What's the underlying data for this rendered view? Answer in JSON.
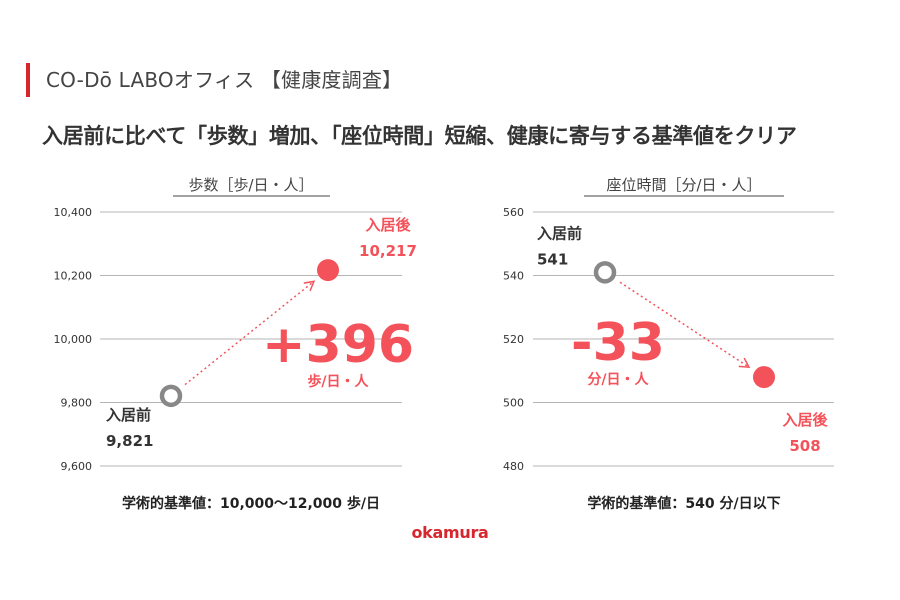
{
  "header": {
    "title": "CO-Dō LABOオフィス 【健康度調査】"
  },
  "headline": "入居前に比べて「歩数」増加、「座位時間」短縮、健康に寄与する基準値をクリア",
  "footer": {
    "logo": "okamura"
  },
  "colors": {
    "accent": "#d8262e",
    "after": "#f4525a",
    "before": "#888888",
    "grid": "#b5b5b5"
  },
  "chart_data": [
    {
      "type": "line",
      "title": "歩数［歩/日・人］",
      "ylim": [
        9600,
        10400
      ],
      "yticks": [
        "9,600",
        "9,800",
        "10,000",
        "10,200",
        "10,400"
      ],
      "ytick_values": [
        9600,
        9800,
        10000,
        10200,
        10400
      ],
      "grid": true,
      "before": {
        "label": "入居前",
        "value": 9821,
        "value_text": "9,821"
      },
      "after": {
        "label": "入居後",
        "value": 10217,
        "value_text": "10,217"
      },
      "delta": "+396",
      "delta_unit": "歩/日・人",
      "note": "学術的基準値：10,000〜12,000 歩/日"
    },
    {
      "type": "line",
      "title": "座位時間［分/日・人］",
      "ylim": [
        480,
        560
      ],
      "yticks": [
        "480",
        "500",
        "520",
        "540",
        "560"
      ],
      "ytick_values": [
        480,
        500,
        520,
        540,
        560
      ],
      "grid": true,
      "before": {
        "label": "入居前",
        "value": 541,
        "value_text": "541"
      },
      "after": {
        "label": "入居後",
        "value": 508,
        "value_text": "508"
      },
      "delta": "-33",
      "delta_unit": "分/日・人",
      "note": "学術的基準値：540 分/日以下"
    }
  ]
}
